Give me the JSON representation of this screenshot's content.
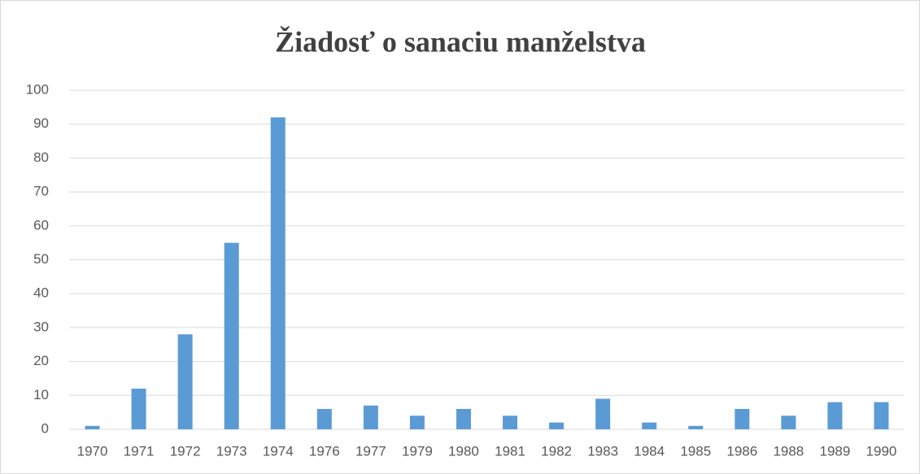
{
  "chart_data": {
    "type": "bar",
    "title": "Žiadosť o sanaciu manželstva",
    "categories": [
      "1970",
      "1971",
      "1972",
      "1973",
      "1974",
      "1976",
      "1977",
      "1979",
      "1980",
      "1981",
      "1982",
      "1983",
      "1984",
      "1985",
      "1986",
      "1988",
      "1989",
      "1990"
    ],
    "values": [
      1,
      12,
      28,
      55,
      92,
      6,
      7,
      4,
      6,
      4,
      2,
      9,
      2,
      1,
      6,
      4,
      8,
      8
    ],
    "color": "#5b9bd5",
    "ylim": [
      0,
      100
    ],
    "yticks": [
      0,
      10,
      20,
      30,
      40,
      50,
      60,
      70,
      80,
      90,
      100
    ],
    "grid": true
  }
}
